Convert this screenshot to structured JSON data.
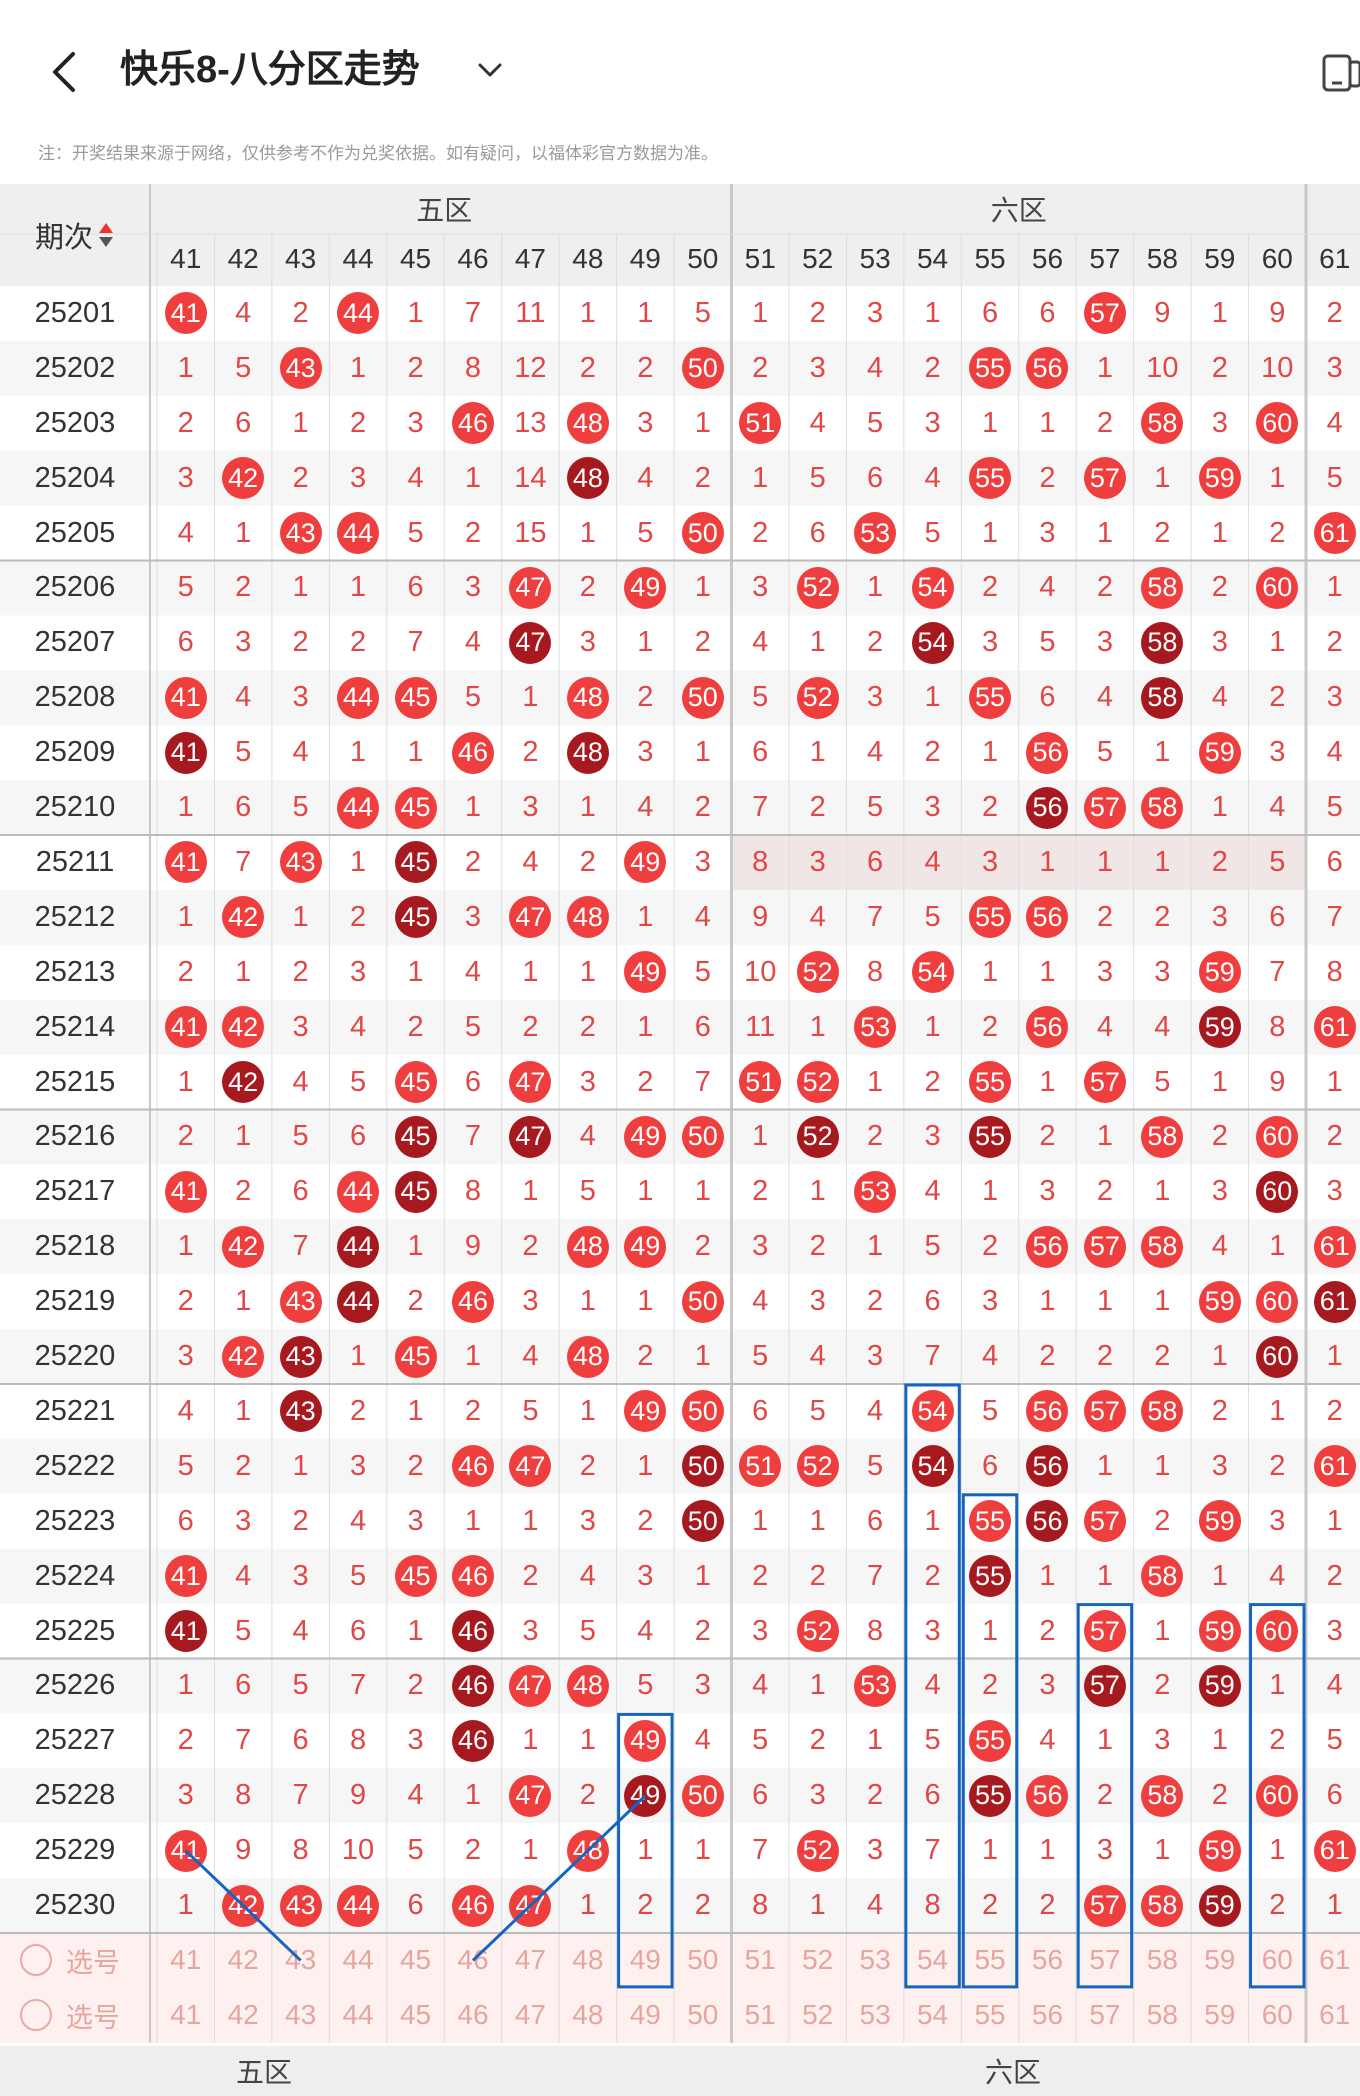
{
  "header": {
    "title": "快乐8-八分区走势",
    "back_icon": "chevron-left-icon",
    "dropdown_icon": "chevron-down-icon",
    "device_icon": "device-icon"
  },
  "note": "注：开奖结果来源于网络，仅供参考不作为兑奖依据。如有疑问，以福体彩官方数据为准。",
  "colors": {
    "ball_red": "#ee3e3e",
    "ball_dark": "#a5191f",
    "number_text": "#e04848",
    "highlight_box": "#1565c0"
  },
  "table": {
    "issue_header": "期次",
    "zones": [
      "五区",
      "六区"
    ],
    "footer_zones": [
      "五区",
      "六区"
    ],
    "columns": [
      "41",
      "42",
      "43",
      "44",
      "45",
      "46",
      "47",
      "48",
      "49",
      "50",
      "51",
      "52",
      "53",
      "54",
      "55",
      "56",
      "57",
      "58",
      "59",
      "60",
      "61"
    ],
    "rows": [
      {
        "issue": "25201",
        "cells": [
          "41",
          "4",
          "2",
          "44",
          "1",
          "7",
          "11",
          "1",
          "1",
          "5",
          "1",
          "2",
          "3",
          "1",
          "6",
          "6",
          "57",
          "9",
          "1",
          "9",
          "2"
        ]
      },
      {
        "issue": "25202",
        "cells": [
          "1",
          "5",
          "43",
          "1",
          "2",
          "8",
          "12",
          "2",
          "2",
          "50",
          "2",
          "3",
          "4",
          "2",
          "55",
          "56",
          "1",
          "10",
          "2",
          "10",
          "3"
        ]
      },
      {
        "issue": "25203",
        "cells": [
          "2",
          "6",
          "1",
          "2",
          "3",
          "46",
          "13",
          "48",
          "3",
          "1",
          "51",
          "4",
          "5",
          "3",
          "1",
          "1",
          "2",
          "58",
          "3",
          "60",
          "4"
        ]
      },
      {
        "issue": "25204",
        "cells": [
          "3",
          "42",
          "2",
          "3",
          "4",
          "1",
          "14",
          "48",
          "4",
          "2",
          "1",
          "5",
          "6",
          "4",
          "55",
          "2",
          "57",
          "1",
          "59",
          "1",
          "5"
        ]
      },
      {
        "issue": "25205",
        "cells": [
          "4",
          "1",
          "43",
          "44",
          "5",
          "2",
          "15",
          "1",
          "5",
          "50",
          "2",
          "6",
          "53",
          "5",
          "1",
          "3",
          "1",
          "2",
          "1",
          "2",
          "61"
        ]
      },
      {
        "issue": "25206",
        "cells": [
          "5",
          "2",
          "1",
          "1",
          "6",
          "3",
          "47",
          "2",
          "49",
          "1",
          "3",
          "52",
          "1",
          "54",
          "2",
          "4",
          "2",
          "58",
          "2",
          "60",
          "1"
        ]
      },
      {
        "issue": "25207",
        "cells": [
          "6",
          "3",
          "2",
          "2",
          "7",
          "4",
          "47",
          "3",
          "1",
          "2",
          "4",
          "1",
          "2",
          "54",
          "3",
          "5",
          "3",
          "58",
          "3",
          "1",
          "2"
        ]
      },
      {
        "issue": "25208",
        "cells": [
          "41",
          "4",
          "3",
          "44",
          "45",
          "5",
          "1",
          "48",
          "2",
          "50",
          "5",
          "52",
          "3",
          "1",
          "55",
          "6",
          "4",
          "58",
          "4",
          "2",
          "3"
        ]
      },
      {
        "issue": "25209",
        "cells": [
          "41",
          "5",
          "4",
          "1",
          "1",
          "46",
          "2",
          "48",
          "3",
          "1",
          "6",
          "1",
          "4",
          "2",
          "1",
          "56",
          "5",
          "1",
          "59",
          "3",
          "4"
        ]
      },
      {
        "issue": "25210",
        "cells": [
          "1",
          "6",
          "5",
          "44",
          "45",
          "1",
          "3",
          "1",
          "4",
          "2",
          "7",
          "2",
          "5",
          "3",
          "2",
          "56",
          "57",
          "58",
          "1",
          "4",
          "5"
        ]
      },
      {
        "issue": "25211",
        "cells": [
          "41",
          "7",
          "43",
          "1",
          "45",
          "2",
          "4",
          "2",
          "49",
          "3",
          "8",
          "3",
          "6",
          "4",
          "3",
          "1",
          "1",
          "1",
          "2",
          "5",
          "6"
        ]
      },
      {
        "issue": "25212",
        "cells": [
          "1",
          "42",
          "1",
          "2",
          "45",
          "3",
          "47",
          "48",
          "1",
          "4",
          "9",
          "4",
          "7",
          "5",
          "55",
          "56",
          "2",
          "2",
          "3",
          "6",
          "7"
        ]
      },
      {
        "issue": "25213",
        "cells": [
          "2",
          "1",
          "2",
          "3",
          "1",
          "4",
          "1",
          "1",
          "49",
          "5",
          "10",
          "52",
          "8",
          "54",
          "1",
          "1",
          "3",
          "3",
          "59",
          "7",
          "8"
        ]
      },
      {
        "issue": "25214",
        "cells": [
          "41",
          "42",
          "3",
          "4",
          "2",
          "5",
          "2",
          "2",
          "1",
          "6",
          "11",
          "1",
          "53",
          "1",
          "2",
          "56",
          "4",
          "4",
          "59",
          "8",
          "61"
        ]
      },
      {
        "issue": "25215",
        "cells": [
          "1",
          "42",
          "4",
          "5",
          "45",
          "6",
          "47",
          "3",
          "2",
          "7",
          "51",
          "52",
          "1",
          "2",
          "55",
          "1",
          "57",
          "5",
          "1",
          "9",
          "1"
        ]
      },
      {
        "issue": "25216",
        "cells": [
          "2",
          "1",
          "5",
          "6",
          "45",
          "7",
          "47",
          "4",
          "49",
          "50",
          "1",
          "52",
          "2",
          "3",
          "55",
          "2",
          "1",
          "58",
          "2",
          "60",
          "2"
        ]
      },
      {
        "issue": "25217",
        "cells": [
          "41",
          "2",
          "6",
          "44",
          "45",
          "8",
          "1",
          "5",
          "1",
          "1",
          "2",
          "1",
          "53",
          "4",
          "1",
          "3",
          "2",
          "1",
          "3",
          "60",
          "3"
        ]
      },
      {
        "issue": "25218",
        "cells": [
          "1",
          "42",
          "7",
          "44",
          "1",
          "9",
          "2",
          "48",
          "49",
          "2",
          "3",
          "2",
          "1",
          "5",
          "2",
          "56",
          "57",
          "58",
          "4",
          "1",
          "61"
        ]
      },
      {
        "issue": "25219",
        "cells": [
          "2",
          "1",
          "43",
          "44",
          "2",
          "46",
          "3",
          "1",
          "1",
          "50",
          "4",
          "3",
          "2",
          "6",
          "3",
          "1",
          "1",
          "1",
          "59",
          "60",
          "61"
        ]
      },
      {
        "issue": "25220",
        "cells": [
          "3",
          "42",
          "43",
          "1",
          "45",
          "1",
          "4",
          "48",
          "2",
          "1",
          "5",
          "4",
          "3",
          "7",
          "4",
          "2",
          "2",
          "2",
          "1",
          "60",
          "1"
        ]
      },
      {
        "issue": "25221",
        "cells": [
          "4",
          "1",
          "43",
          "2",
          "1",
          "2",
          "5",
          "1",
          "49",
          "50",
          "6",
          "5",
          "4",
          "54",
          "5",
          "56",
          "57",
          "58",
          "2",
          "1",
          "2"
        ]
      },
      {
        "issue": "25222",
        "cells": [
          "5",
          "2",
          "1",
          "3",
          "2",
          "46",
          "47",
          "2",
          "1",
          "50",
          "51",
          "52",
          "5",
          "54",
          "6",
          "56",
          "1",
          "1",
          "3",
          "2",
          "61"
        ]
      },
      {
        "issue": "25223",
        "cells": [
          "6",
          "3",
          "2",
          "4",
          "3",
          "1",
          "1",
          "3",
          "2",
          "50",
          "1",
          "1",
          "6",
          "1",
          "55",
          "56",
          "57",
          "2",
          "59",
          "3",
          "1"
        ]
      },
      {
        "issue": "25224",
        "cells": [
          "41",
          "4",
          "3",
          "5",
          "45",
          "46",
          "2",
          "4",
          "3",
          "1",
          "2",
          "2",
          "7",
          "2",
          "55",
          "1",
          "1",
          "58",
          "1",
          "4",
          "2"
        ]
      },
      {
        "issue": "25225",
        "cells": [
          "41",
          "5",
          "4",
          "6",
          "1",
          "46",
          "3",
          "5",
          "4",
          "2",
          "3",
          "52",
          "8",
          "3",
          "1",
          "2",
          "57",
          "1",
          "59",
          "60",
          "3"
        ]
      },
      {
        "issue": "25226",
        "cells": [
          "1",
          "6",
          "5",
          "7",
          "2",
          "46",
          "47",
          "48",
          "5",
          "3",
          "4",
          "1",
          "53",
          "4",
          "2",
          "3",
          "57",
          "2",
          "59",
          "1",
          "4"
        ]
      },
      {
        "issue": "25227",
        "cells": [
          "2",
          "7",
          "6",
          "8",
          "3",
          "46",
          "1",
          "1",
          "49",
          "4",
          "5",
          "2",
          "1",
          "5",
          "55",
          "4",
          "1",
          "3",
          "1",
          "2",
          "5"
        ]
      },
      {
        "issue": "25228",
        "cells": [
          "3",
          "8",
          "7",
          "9",
          "4",
          "1",
          "47",
          "2",
          "49",
          "50",
          "6",
          "3",
          "2",
          "6",
          "55",
          "56",
          "2",
          "58",
          "2",
          "60",
          "6"
        ]
      },
      {
        "issue": "25229",
        "cells": [
          "41",
          "9",
          "8",
          "10",
          "5",
          "2",
          "1",
          "48",
          "1",
          "1",
          "7",
          "52",
          "3",
          "7",
          "1",
          "1",
          "3",
          "1",
          "59",
          "1",
          "61"
        ]
      },
      {
        "issue": "25230",
        "cells": [
          "1",
          "42",
          "43",
          "44",
          "6",
          "46",
          "47",
          "1",
          "2",
          "2",
          "8",
          "1",
          "4",
          "8",
          "2",
          "2",
          "57",
          "58",
          "59",
          "2",
          "1"
        ]
      }
    ],
    "select_rows": [
      {
        "label": "选号",
        "cells": [
          "41",
          "42",
          "43",
          "44",
          "45",
          "46",
          "47",
          "48",
          "49",
          "50",
          "51",
          "52",
          "53",
          "54",
          "55",
          "56",
          "57",
          "58",
          "59",
          "60",
          "61"
        ]
      },
      {
        "label": "选号",
        "cells": [
          "41",
          "42",
          "43",
          "44",
          "45",
          "46",
          "47",
          "48",
          "49",
          "50",
          "51",
          "52",
          "53",
          "54",
          "55",
          "56",
          "57",
          "58",
          "59",
          "60",
          "61"
        ]
      }
    ]
  }
}
